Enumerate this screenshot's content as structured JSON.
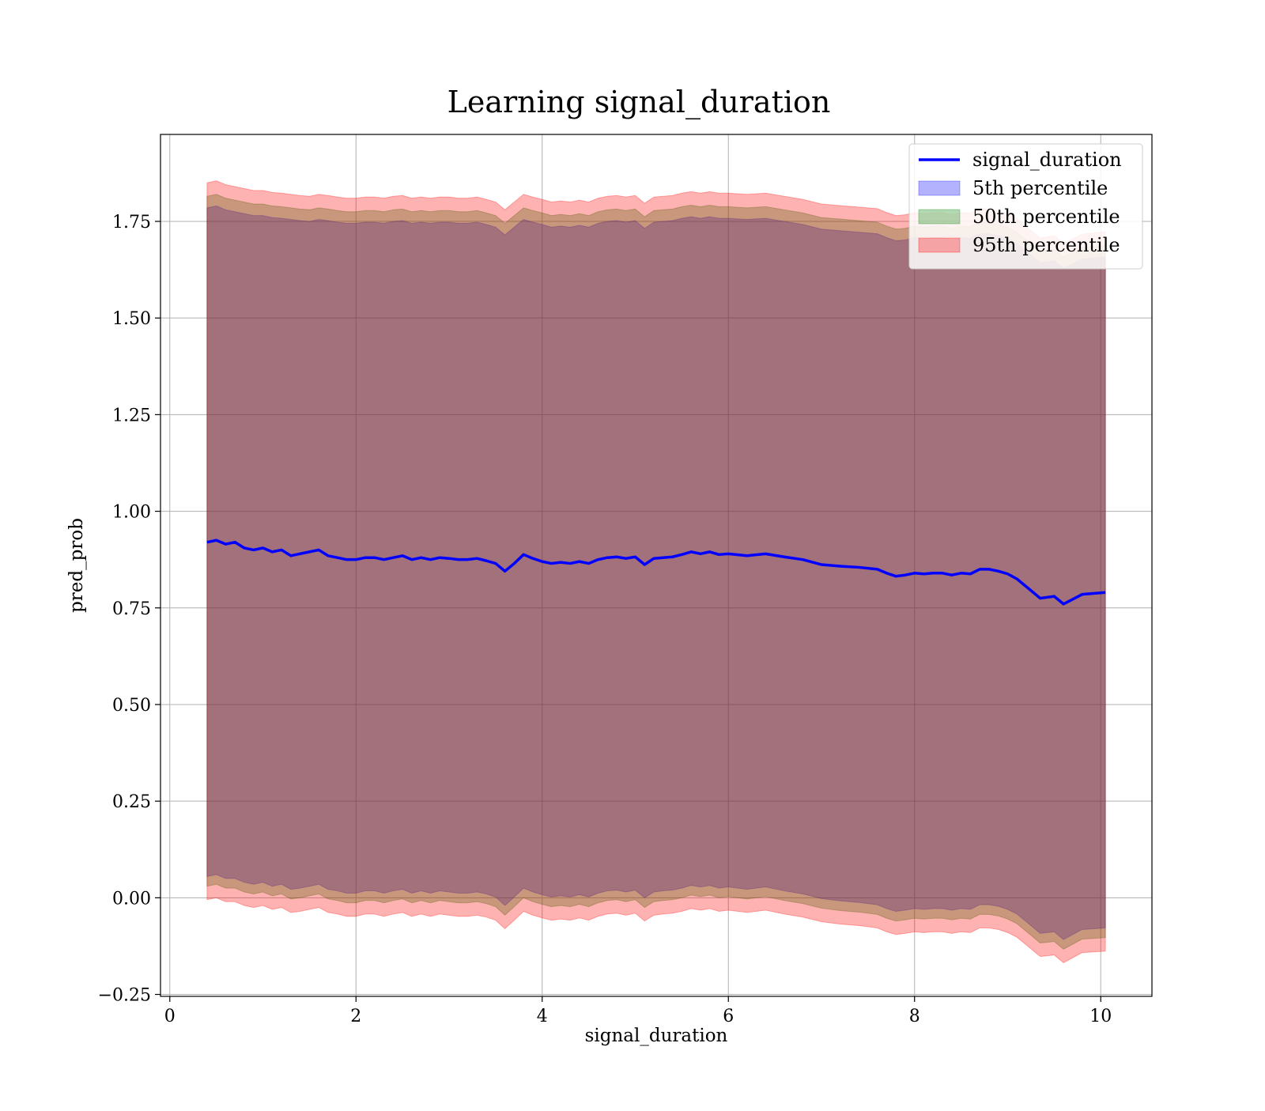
{
  "chart_data": {
    "type": "area",
    "title": "Learning signal_duration",
    "xlabel": "signal_duration",
    "ylabel": "pred_prob",
    "xlim": [
      -0.1,
      10.55
    ],
    "ylim": [
      -0.255,
      1.975
    ],
    "xticks": [
      0,
      2,
      4,
      6,
      8,
      10
    ],
    "xtick_labels": [
      "0",
      "2",
      "4",
      "6",
      "8",
      "10"
    ],
    "yticks": [
      -0.25,
      0.0,
      0.25,
      0.5,
      0.75,
      1.0,
      1.25,
      1.5,
      1.75
    ],
    "ytick_labels": [
      "−0.25",
      "0.00",
      "0.25",
      "0.50",
      "0.75",
      "1.00",
      "1.25",
      "1.50",
      "1.75"
    ],
    "grid": true,
    "legend_position": "top-right",
    "x": [
      0.4,
      0.5,
      0.6,
      0.7,
      0.8,
      0.9,
      1.0,
      1.1,
      1.2,
      1.3,
      1.4,
      1.5,
      1.6,
      1.7,
      1.8,
      1.9,
      2.0,
      2.1,
      2.2,
      2.3,
      2.4,
      2.5,
      2.6,
      2.7,
      2.8,
      2.9,
      3.0,
      3.1,
      3.2,
      3.3,
      3.4,
      3.5,
      3.6,
      3.7,
      3.8,
      3.9,
      4.0,
      4.1,
      4.2,
      4.3,
      4.4,
      4.5,
      4.6,
      4.7,
      4.8,
      4.9,
      5.0,
      5.1,
      5.2,
      5.3,
      5.4,
      5.5,
      5.6,
      5.7,
      5.8,
      5.9,
      6.0,
      6.2,
      6.4,
      6.6,
      6.8,
      7.0,
      7.2,
      7.4,
      7.6,
      7.7,
      7.8,
      7.9,
      8.0,
      8.1,
      8.2,
      8.3,
      8.4,
      8.5,
      8.6,
      8.7,
      8.8,
      8.9,
      9.0,
      9.1,
      9.2,
      9.35,
      9.5,
      9.6,
      9.8,
      10.05
    ],
    "series": [
      {
        "name": "signal_duration",
        "kind": "line",
        "color": "#0000ff",
        "values": [
          0.92,
          0.925,
          0.915,
          0.92,
          0.905,
          0.9,
          0.905,
          0.895,
          0.9,
          0.885,
          0.89,
          0.895,
          0.9,
          0.885,
          0.88,
          0.875,
          0.875,
          0.88,
          0.88,
          0.875,
          0.88,
          0.885,
          0.875,
          0.88,
          0.875,
          0.88,
          0.878,
          0.875,
          0.875,
          0.878,
          0.872,
          0.865,
          0.845,
          0.865,
          0.888,
          0.878,
          0.87,
          0.865,
          0.868,
          0.865,
          0.87,
          0.865,
          0.875,
          0.88,
          0.882,
          0.878,
          0.882,
          0.862,
          0.878,
          0.88,
          0.882,
          0.888,
          0.895,
          0.89,
          0.895,
          0.888,
          0.89,
          0.885,
          0.89,
          0.882,
          0.875,
          0.862,
          0.858,
          0.855,
          0.85,
          0.84,
          0.832,
          0.835,
          0.84,
          0.838,
          0.84,
          0.84,
          0.835,
          0.84,
          0.838,
          0.85,
          0.85,
          0.845,
          0.838,
          0.825,
          0.805,
          0.775,
          0.78,
          0.76,
          0.785,
          0.79
        ]
      },
      {
        "name": "5th percentile",
        "kind": "band",
        "color": "#0000ff",
        "upper": [
          1.785,
          1.79,
          1.78,
          1.775,
          1.77,
          1.765,
          1.765,
          1.76,
          1.758,
          1.755,
          1.752,
          1.75,
          1.755,
          1.752,
          1.748,
          1.745,
          1.745,
          1.748,
          1.748,
          1.745,
          1.75,
          1.752,
          1.745,
          1.748,
          1.745,
          1.748,
          1.748,
          1.745,
          1.745,
          1.748,
          1.742,
          1.735,
          1.715,
          1.735,
          1.755,
          1.748,
          1.742,
          1.735,
          1.738,
          1.735,
          1.74,
          1.735,
          1.745,
          1.75,
          1.752,
          1.748,
          1.752,
          1.732,
          1.748,
          1.75,
          1.752,
          1.758,
          1.762,
          1.758,
          1.762,
          1.758,
          1.758,
          1.755,
          1.758,
          1.75,
          1.742,
          1.73,
          1.726,
          1.722,
          1.718,
          1.708,
          1.7,
          1.702,
          1.708,
          1.705,
          1.708,
          1.708,
          1.702,
          1.708,
          1.706,
          1.718,
          1.718,
          1.712,
          1.705,
          1.692,
          1.672,
          1.642,
          1.648,
          1.628,
          1.652,
          1.658
        ],
        "lower": [
          0.055,
          0.06,
          0.05,
          0.05,
          0.04,
          0.035,
          0.04,
          0.03,
          0.035,
          0.022,
          0.025,
          0.03,
          0.035,
          0.022,
          0.018,
          0.012,
          0.012,
          0.018,
          0.018,
          0.012,
          0.018,
          0.022,
          0.012,
          0.018,
          0.012,
          0.018,
          0.015,
          0.012,
          0.012,
          0.015,
          0.01,
          0.002,
          -0.02,
          0.002,
          0.025,
          0.015,
          0.008,
          0.002,
          0.005,
          0.002,
          0.008,
          0.002,
          0.012,
          0.018,
          0.02,
          0.015,
          0.02,
          0.0,
          0.015,
          0.018,
          0.02,
          0.025,
          0.032,
          0.028,
          0.032,
          0.025,
          0.028,
          0.022,
          0.028,
          0.018,
          0.01,
          -0.002,
          -0.008,
          -0.012,
          -0.018,
          -0.028,
          -0.035,
          -0.032,
          -0.028,
          -0.03,
          -0.028,
          -0.028,
          -0.032,
          -0.028,
          -0.03,
          -0.018,
          -0.018,
          -0.022,
          -0.03,
          -0.042,
          -0.062,
          -0.092,
          -0.088,
          -0.108,
          -0.082,
          -0.078
        ]
      },
      {
        "name": "50th percentile",
        "kind": "band",
        "color": "#008000",
        "upper": [
          1.815,
          1.82,
          1.81,
          1.805,
          1.8,
          1.795,
          1.795,
          1.79,
          1.788,
          1.785,
          1.782,
          1.78,
          1.785,
          1.782,
          1.778,
          1.775,
          1.775,
          1.778,
          1.778,
          1.775,
          1.78,
          1.782,
          1.775,
          1.778,
          1.775,
          1.778,
          1.778,
          1.775,
          1.775,
          1.778,
          1.772,
          1.765,
          1.745,
          1.765,
          1.785,
          1.778,
          1.772,
          1.765,
          1.768,
          1.765,
          1.77,
          1.765,
          1.775,
          1.78,
          1.782,
          1.778,
          1.782,
          1.762,
          1.778,
          1.78,
          1.782,
          1.788,
          1.792,
          1.788,
          1.792,
          1.788,
          1.788,
          1.785,
          1.788,
          1.78,
          1.772,
          1.76,
          1.756,
          1.752,
          1.748,
          1.738,
          1.73,
          1.732,
          1.738,
          1.735,
          1.738,
          1.738,
          1.732,
          1.738,
          1.736,
          1.748,
          1.748,
          1.742,
          1.735,
          1.722,
          1.702,
          1.672,
          1.678,
          1.658,
          1.682,
          1.688
        ],
        "lower": [
          0.03,
          0.035,
          0.025,
          0.025,
          0.015,
          0.01,
          0.015,
          0.005,
          0.01,
          -0.003,
          0.0,
          0.005,
          0.01,
          -0.003,
          -0.007,
          -0.013,
          -0.013,
          -0.007,
          -0.007,
          -0.013,
          -0.007,
          -0.003,
          -0.013,
          -0.007,
          -0.013,
          -0.007,
          -0.01,
          -0.013,
          -0.013,
          -0.01,
          -0.015,
          -0.023,
          -0.045,
          -0.023,
          0.0,
          -0.01,
          -0.017,
          -0.023,
          -0.02,
          -0.023,
          -0.017,
          -0.023,
          -0.013,
          -0.007,
          -0.005,
          -0.01,
          -0.005,
          -0.025,
          -0.01,
          -0.007,
          -0.005,
          0.0,
          0.007,
          0.003,
          0.007,
          0.0,
          0.003,
          -0.003,
          0.003,
          -0.007,
          -0.015,
          -0.027,
          -0.033,
          -0.037,
          -0.043,
          -0.053,
          -0.06,
          -0.057,
          -0.053,
          -0.055,
          -0.053,
          -0.053,
          -0.057,
          -0.053,
          -0.055,
          -0.043,
          -0.043,
          -0.047,
          -0.055,
          -0.067,
          -0.087,
          -0.117,
          -0.113,
          -0.133,
          -0.107,
          -0.103
        ]
      },
      {
        "name": "95th percentile",
        "kind": "band",
        "color": "#ff0000",
        "upper": [
          1.85,
          1.855,
          1.845,
          1.84,
          1.835,
          1.83,
          1.83,
          1.825,
          1.823,
          1.82,
          1.817,
          1.815,
          1.82,
          1.817,
          1.813,
          1.81,
          1.81,
          1.813,
          1.813,
          1.81,
          1.815,
          1.817,
          1.81,
          1.813,
          1.81,
          1.813,
          1.813,
          1.81,
          1.81,
          1.813,
          1.807,
          1.8,
          1.78,
          1.8,
          1.82,
          1.813,
          1.807,
          1.8,
          1.803,
          1.8,
          1.805,
          1.8,
          1.81,
          1.815,
          1.817,
          1.813,
          1.817,
          1.797,
          1.813,
          1.815,
          1.817,
          1.823,
          1.827,
          1.823,
          1.827,
          1.823,
          1.823,
          1.82,
          1.823,
          1.815,
          1.807,
          1.795,
          1.791,
          1.787,
          1.783,
          1.773,
          1.765,
          1.767,
          1.773,
          1.77,
          1.773,
          1.773,
          1.767,
          1.773,
          1.771,
          1.783,
          1.783,
          1.777,
          1.77,
          1.757,
          1.737,
          1.707,
          1.713,
          1.693,
          1.717,
          1.723
        ],
        "lower": [
          -0.005,
          0.0,
          -0.01,
          -0.01,
          -0.02,
          -0.025,
          -0.02,
          -0.03,
          -0.025,
          -0.038,
          -0.035,
          -0.03,
          -0.025,
          -0.038,
          -0.042,
          -0.048,
          -0.048,
          -0.042,
          -0.042,
          -0.048,
          -0.042,
          -0.038,
          -0.048,
          -0.042,
          -0.048,
          -0.042,
          -0.045,
          -0.048,
          -0.048,
          -0.045,
          -0.05,
          -0.058,
          -0.08,
          -0.058,
          -0.035,
          -0.045,
          -0.052,
          -0.058,
          -0.055,
          -0.058,
          -0.052,
          -0.058,
          -0.048,
          -0.042,
          -0.04,
          -0.045,
          -0.04,
          -0.06,
          -0.045,
          -0.042,
          -0.04,
          -0.035,
          -0.028,
          -0.032,
          -0.028,
          -0.035,
          -0.032,
          -0.038,
          -0.032,
          -0.042,
          -0.05,
          -0.062,
          -0.068,
          -0.072,
          -0.078,
          -0.088,
          -0.095,
          -0.092,
          -0.088,
          -0.09,
          -0.088,
          -0.088,
          -0.092,
          -0.088,
          -0.09,
          -0.078,
          -0.078,
          -0.082,
          -0.09,
          -0.102,
          -0.122,
          -0.152,
          -0.148,
          -0.168,
          -0.142,
          -0.138
        ]
      }
    ],
    "legend": [
      {
        "label": "signal_duration",
        "kind": "line",
        "color": "#0000ff"
      },
      {
        "label": "5th percentile",
        "kind": "patch",
        "color": "#0000ff"
      },
      {
        "label": "50th percentile",
        "kind": "patch",
        "color": "#008000"
      },
      {
        "label": "95th percentile",
        "kind": "patch",
        "color": "#ff0000"
      }
    ]
  }
}
